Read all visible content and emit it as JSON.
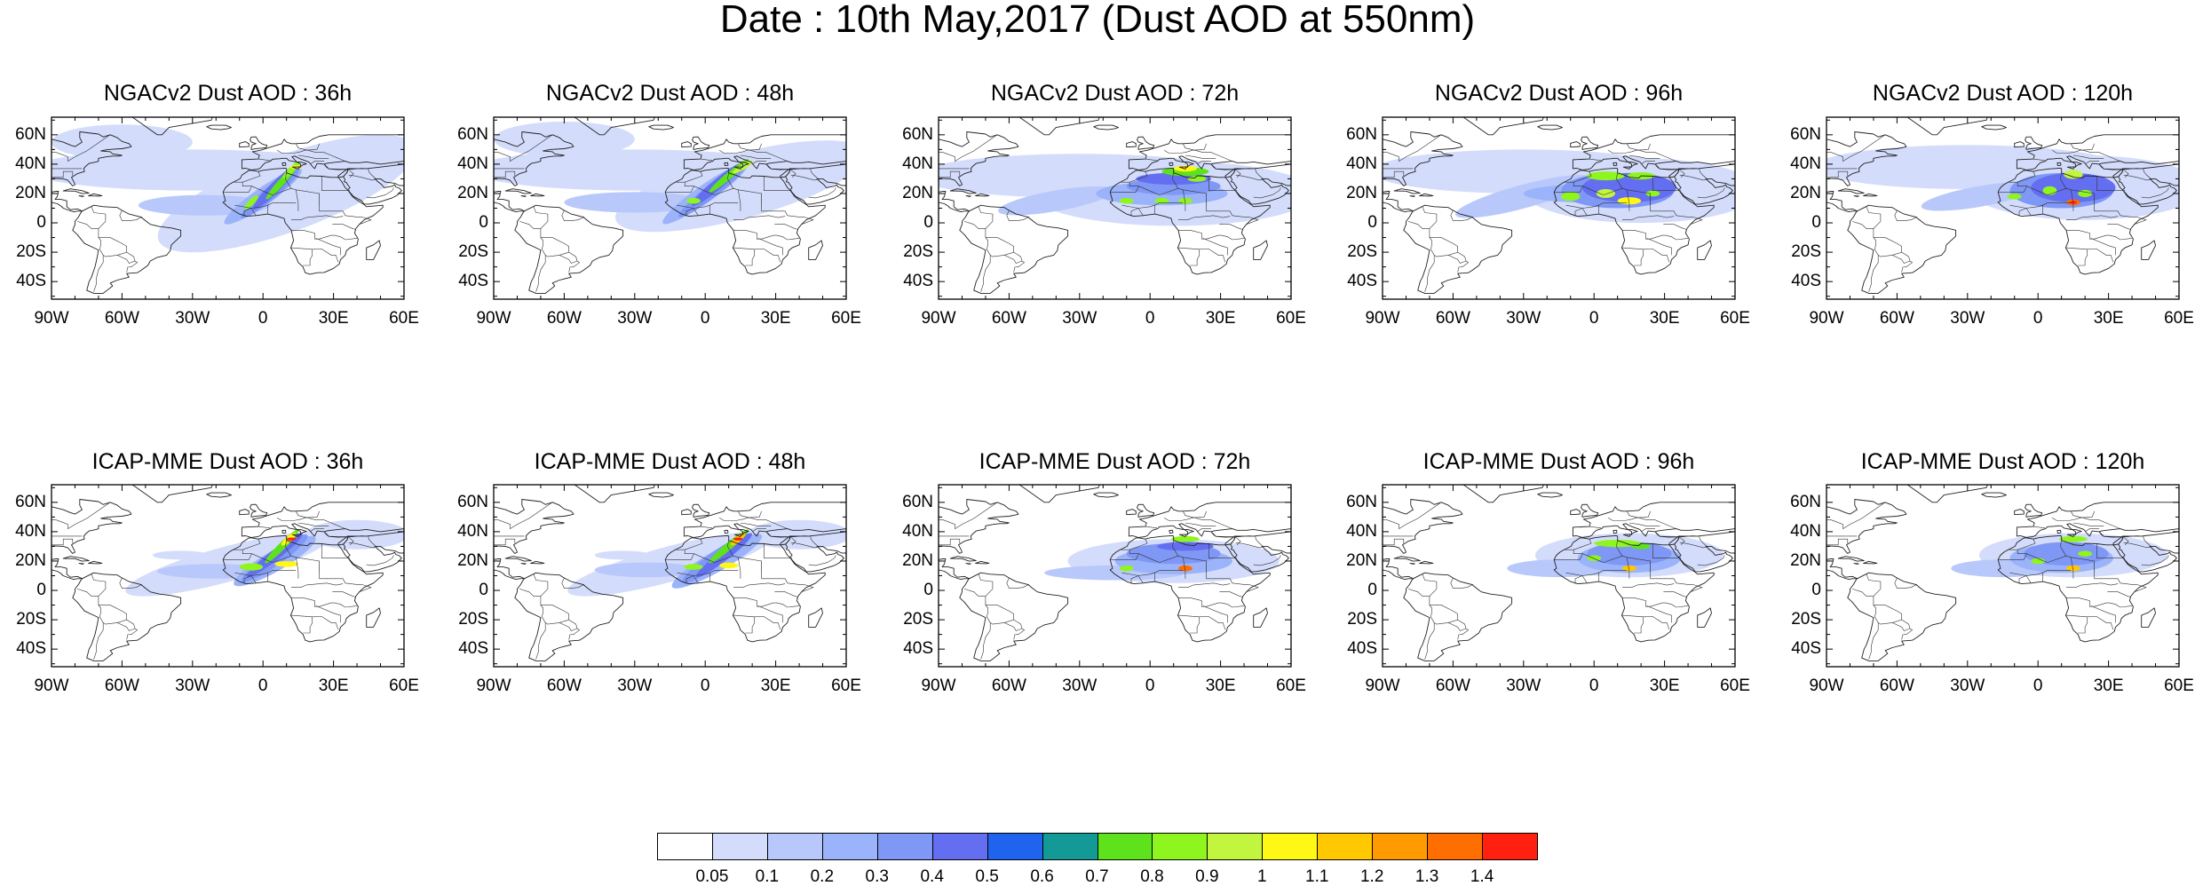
{
  "title": "Date : 10th May,2017 (Dust AOD at 550nm)",
  "lat_labels": [
    "60N",
    "40N",
    "20N",
    "0",
    "20S",
    "40S"
  ],
  "lon_labels": [
    "90W",
    "60W",
    "30W",
    "0",
    "30E",
    "60E"
  ],
  "panels": [
    {
      "title": "NGACv2 Dust AOD : 36h"
    },
    {
      "title": "NGACv2 Dust AOD : 48h"
    },
    {
      "title": "NGACv2 Dust AOD : 72h"
    },
    {
      "title": "NGACv2 Dust AOD : 96h"
    },
    {
      "title": "NGACv2 Dust AOD : 120h"
    },
    {
      "title": "ICAP-MME Dust AOD : 36h"
    },
    {
      "title": "ICAP-MME Dust AOD : 48h"
    },
    {
      "title": "ICAP-MME Dust AOD : 72h"
    },
    {
      "title": "ICAP-MME Dust AOD : 96h"
    },
    {
      "title": "ICAP-MME Dust AOD : 120h"
    }
  ],
  "colorbar": {
    "colors": [
      "#ffffff",
      "#d3dcfb",
      "#b9c8fb",
      "#9ab3fa",
      "#7f97f5",
      "#636ef0",
      "#1f63ee",
      "#149a96",
      "#5ee21c",
      "#8ef51f",
      "#c2f53e",
      "#fff714",
      "#ffc800",
      "#ff9b00",
      "#ff6e00",
      "#ff2010"
    ],
    "labels": [
      "0.05",
      "0.1",
      "0.2",
      "0.3",
      "0.4",
      "0.5",
      "0.6",
      "0.7",
      "0.8",
      "0.9",
      "1",
      "1.1",
      "1.2",
      "1.3",
      "1.4"
    ]
  }
}
